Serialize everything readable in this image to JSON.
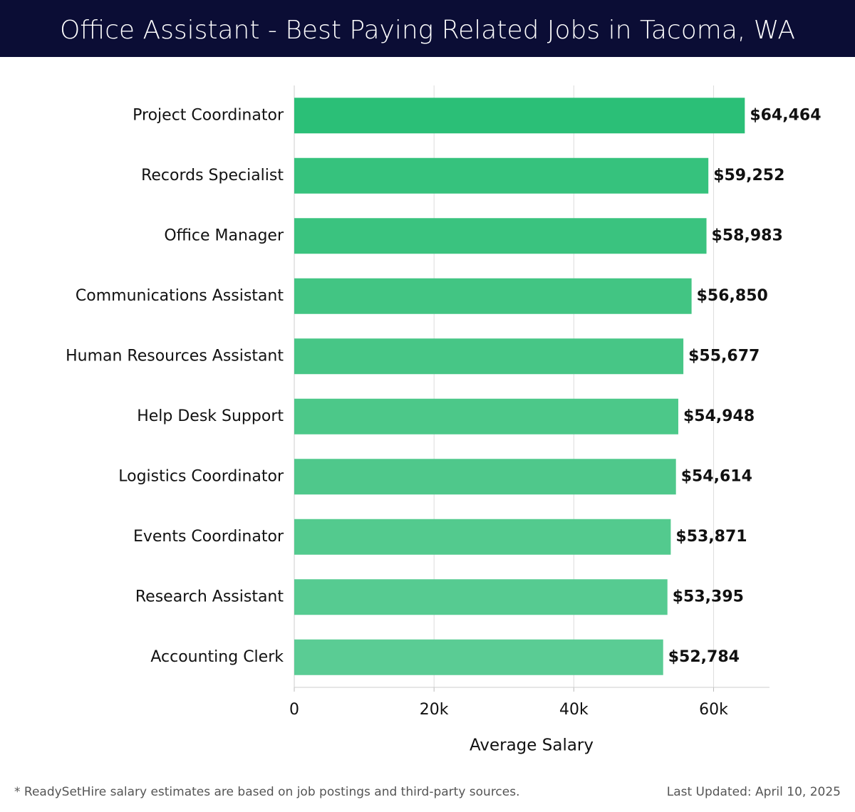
{
  "chart_data": {
    "type": "bar",
    "orientation": "horizontal",
    "title": "Office Assistant - Best Paying Related Jobs in Tacoma, WA",
    "categories": [
      "Project Coordinator",
      "Records Specialist",
      "Office Manager",
      "Communications Assistant",
      "Human Resources Assistant",
      "Help Desk Support",
      "Logistics Coordinator",
      "Events Coordinator",
      "Research Assistant",
      "Accounting Clerk"
    ],
    "values": [
      64464,
      59252,
      58983,
      56850,
      55677,
      54948,
      54614,
      53871,
      53395,
      52784
    ],
    "value_labels": [
      "$64,464",
      "$59,252",
      "$58,983",
      "$56,850",
      "$55,677",
      "$54,948",
      "$54,614",
      "$53,871",
      "$53,395",
      "$52,784"
    ],
    "colors": [
      "#2bbf77",
      "#36c27d",
      "#3ac37f",
      "#42c583",
      "#47c686",
      "#4cc889",
      "#4fc88b",
      "#53ca8e",
      "#56cb91",
      "#5acc94"
    ],
    "xlabel": "Average Salary",
    "xlim": [
      0,
      68000
    ],
    "xticks": [
      0,
      {
        "value": 20000,
        "label": "20k"
      },
      {
        "value": 40000,
        "label": "40k"
      },
      {
        "value": 60000,
        "label": "60k"
      }
    ],
    "grid": true
  },
  "footer": {
    "note": "* ReadySetHire salary estimates are based on job postings and third-party sources.",
    "updated": "Last Updated: April 10, 2025"
  }
}
